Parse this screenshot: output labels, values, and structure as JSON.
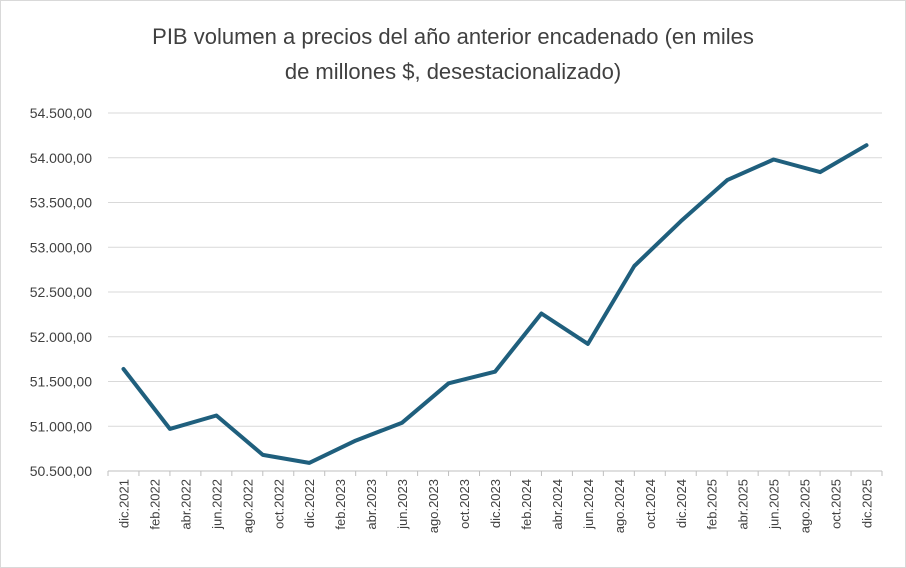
{
  "chart_data": {
    "type": "line",
    "title": "PIB volumen a precios del año anterior encadenado (en miles de millones $, desestacionalizado)",
    "title_lines": [
      "PIB volumen a precios del año anterior encadenado (en miles",
      "de millones $, desestacionalizado)"
    ],
    "xlabel": "",
    "ylabel": "",
    "ylim": [
      50500,
      54500
    ],
    "y_ticks": [
      50500,
      51000,
      51500,
      52000,
      52500,
      53000,
      53500,
      54000,
      54500
    ],
    "y_tick_labels": [
      "50.500,00",
      "51.000,00",
      "51.500,00",
      "52.000,00",
      "52.500,00",
      "53.000,00",
      "53.500,00",
      "54.000,00",
      "54.500,00"
    ],
    "x_tick_labels": [
      "dic.2021",
      "feb.2022",
      "abr.2022",
      "jun.2022",
      "ago.2022",
      "oct.2022",
      "dic.2022",
      "feb.2023",
      "abr.2023",
      "jun.2023",
      "ago.2023",
      "oct.2023",
      "dic.2023",
      "feb.2024",
      "abr.2024",
      "jun.2024",
      "ago.2024",
      "oct.2024",
      "dic.2024",
      "feb.2025",
      "abr.2025",
      "jun.2025",
      "ago.2025",
      "oct.2025",
      "dic.2025"
    ],
    "series": [
      {
        "color": "#1f5f7d",
        "points": [
          {
            "x": "dic.2021",
            "y": 51640
          },
          {
            "x": "mar.2022",
            "y": 50970
          },
          {
            "x": "jun.2022",
            "y": 51120
          },
          {
            "x": "sep.2022",
            "y": 50680
          },
          {
            "x": "dic.2022",
            "y": 50590
          },
          {
            "x": "mar.2023",
            "y": 50840
          },
          {
            "x": "jun.2023",
            "y": 51040
          },
          {
            "x": "sep.2023",
            "y": 51480
          },
          {
            "x": "dic.2023",
            "y": 51610
          },
          {
            "x": "mar.2024",
            "y": 52260
          },
          {
            "x": "jun.2024",
            "y": 51920
          },
          {
            "x": "sep.2024",
            "y": 52790
          },
          {
            "x": "dic.2024",
            "y": 53290
          },
          {
            "x": "mar.2025",
            "y": 53750
          },
          {
            "x": "jun.2025",
            "y": 53980
          },
          {
            "x": "sep.2025",
            "y": 53840
          },
          {
            "x": "dic.2025",
            "y": 54140
          }
        ]
      }
    ],
    "grid": true,
    "gridline_color": "#d9d9d9",
    "axis_color": "#bfbfbf",
    "text_color": "#404040"
  }
}
